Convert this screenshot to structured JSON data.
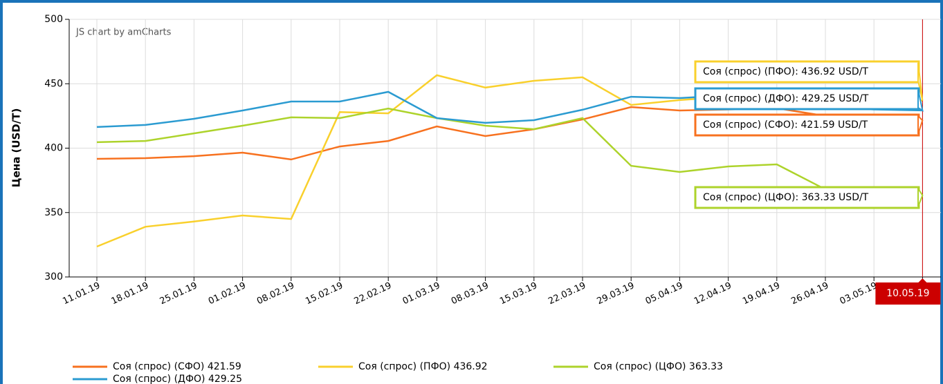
{
  "chart_data": {
    "type": "line",
    "credit": "JS chart by amCharts",
    "y_label": "Цена (USD/T)",
    "categories": [
      "11.01.19",
      "18.01.19",
      "25.01.19",
      "01.02.19",
      "08.02.19",
      "15.02.19",
      "22.02.19",
      "01.03.19",
      "08.03.19",
      "15.03.19",
      "22.03.19",
      "29.03.19",
      "05.04.19",
      "12.04.19",
      "19.04.19",
      "26.04.19",
      "03.05.19",
      "10.05.19"
    ],
    "series": [
      {
        "name": "Соя (спрос) (СФО)",
        "color": "#f7711f",
        "balloon": "Соя (спрос) (СФО): 421.59 USD/T",
        "values": [
          391.7,
          392.2,
          393.8,
          396.5,
          391.2,
          401.3,
          405.6,
          416.9,
          409.4,
          414.7,
          422.3,
          431.9,
          429.2,
          430,
          431,
          425,
          423,
          421.59
        ]
      },
      {
        "name": "Соя (спрос) (ПФО)",
        "color": "#f9d02c",
        "balloon": "Соя (спрос) (ПФО): 436.92 USD/T",
        "values": [
          323.6,
          339,
          343,
          347.7,
          345,
          428,
          427,
          456.6,
          447,
          452.3,
          455,
          433.5,
          437.3,
          440,
          442,
          440,
          438,
          436.92
        ]
      },
      {
        "name": "Соя (спрос) (ЦФО)",
        "color": "#add32b",
        "balloon": "Соя (спрос) (ЦФО): 363.33 USD/T",
        "values": [
          404.6,
          405.6,
          411.5,
          417.4,
          423.9,
          423.3,
          430.8,
          423.3,
          417.4,
          414.7,
          423.3,
          386.3,
          381.5,
          385.8,
          387.4,
          368,
          365,
          363.33
        ]
      },
      {
        "name": "Соя (спрос) (ДФО)",
        "color": "#2b9bd1",
        "balloon": "Соя (спрос) (ДФО): 429.25 USD/T",
        "values": [
          416.4,
          418,
          422.8,
          429.2,
          436.2,
          436.2,
          443.7,
          423.3,
          419.6,
          421.7,
          429.8,
          439.9,
          438.9,
          441,
          435,
          432,
          430,
          429.25
        ]
      }
    ],
    "ylim": [
      300,
      500
    ],
    "yticks": [
      300,
      350,
      400,
      450,
      500
    ],
    "grid": true,
    "cursor_color": "#cc0000"
  }
}
